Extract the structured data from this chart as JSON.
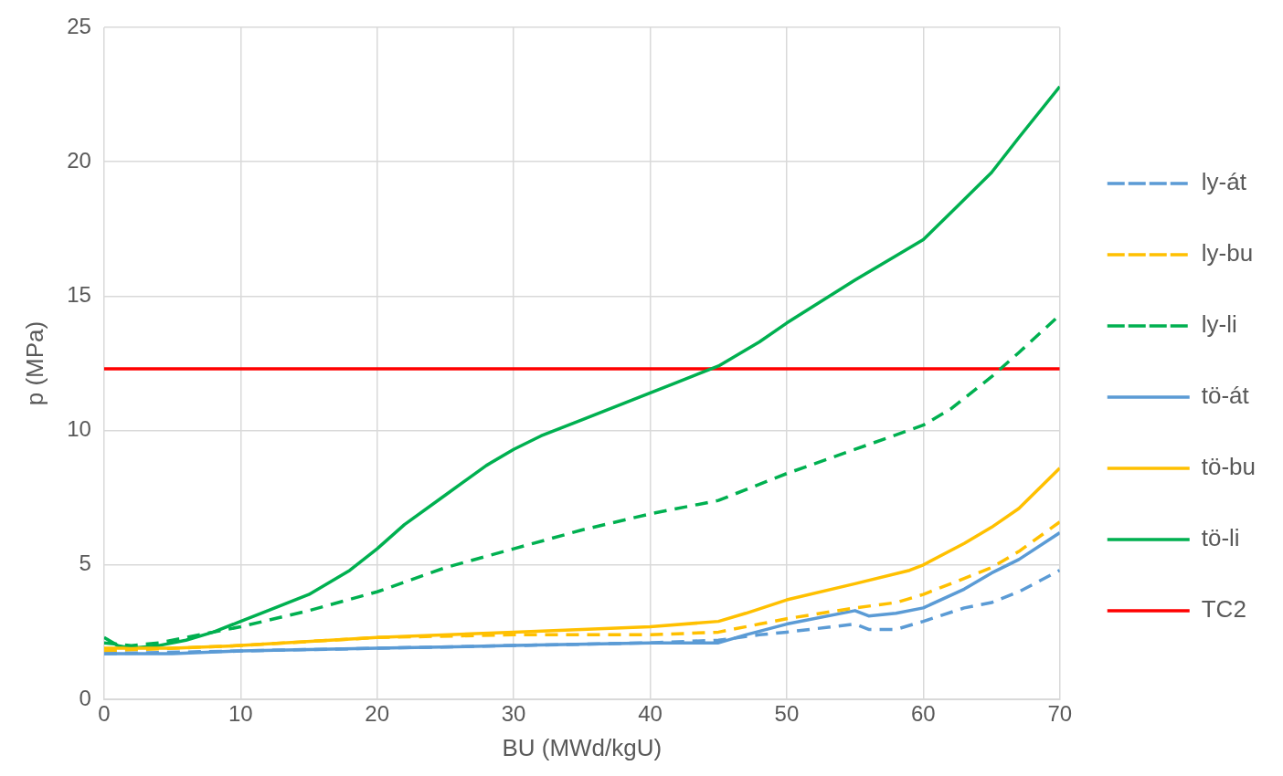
{
  "chart_data": {
    "type": "line",
    "xlabel": "BU (MWd/kgU)",
    "ylabel": "p (MPa)",
    "xlim": [
      0,
      70
    ],
    "ylim": [
      0,
      25
    ],
    "xticks": [
      0,
      10,
      20,
      30,
      40,
      50,
      60,
      70
    ],
    "yticks": [
      0,
      5,
      10,
      15,
      20,
      25
    ],
    "grid": true,
    "legend": "right",
    "marker": "none",
    "series": [
      {
        "name": "ly-át",
        "color": "#5b9bd5",
        "line_style": "dashed",
        "x": [
          0,
          10,
          20,
          30,
          40,
          45,
          48,
          50,
          55,
          56,
          58,
          60,
          63,
          65,
          67,
          70
        ],
        "values": [
          1.7,
          1.8,
          1.9,
          2.0,
          2.1,
          2.2,
          2.4,
          2.5,
          2.8,
          2.6,
          2.6,
          2.9,
          3.4,
          3.6,
          4.0,
          4.8
        ]
      },
      {
        "name": "ly-bu",
        "color": "#ffc000",
        "line_style": "dashed",
        "x": [
          0,
          10,
          20,
          30,
          40,
          45,
          48,
          50,
          55,
          58,
          60,
          63,
          65,
          67,
          70
        ],
        "values": [
          1.8,
          2.0,
          2.3,
          2.4,
          2.4,
          2.5,
          2.8,
          3.0,
          3.4,
          3.6,
          3.9,
          4.5,
          4.9,
          5.5,
          6.6
        ]
      },
      {
        "name": "ly-li",
        "color": "#00b050",
        "line_style": "dashed",
        "x": [
          0,
          2,
          4,
          6,
          10,
          15,
          20,
          25,
          30,
          35,
          40,
          45,
          50,
          55,
          60,
          62,
          65,
          67,
          70
        ],
        "values": [
          2.1,
          2.0,
          2.1,
          2.3,
          2.7,
          3.3,
          4.0,
          4.9,
          5.6,
          6.3,
          6.9,
          7.4,
          8.4,
          9.3,
          10.2,
          10.8,
          12.0,
          12.9,
          14.3
        ]
      },
      {
        "name": "tö-át",
        "color": "#5b9bd5",
        "line_style": "solid",
        "x": [
          0,
          5,
          10,
          20,
          30,
          40,
          45,
          47,
          50,
          55,
          56,
          58,
          60,
          63,
          65,
          67,
          70
        ],
        "values": [
          1.7,
          1.7,
          1.8,
          1.9,
          2.0,
          2.1,
          2.1,
          2.4,
          2.8,
          3.3,
          3.1,
          3.2,
          3.4,
          4.1,
          4.7,
          5.2,
          6.2
        ]
      },
      {
        "name": "tö-bu",
        "color": "#ffc000",
        "line_style": "solid",
        "x": [
          0,
          5,
          10,
          20,
          30,
          40,
          45,
          47,
          50,
          55,
          59,
          60,
          63,
          65,
          67,
          70
        ],
        "values": [
          1.9,
          1.9,
          2.0,
          2.3,
          2.5,
          2.7,
          2.9,
          3.2,
          3.7,
          4.3,
          4.8,
          5.0,
          5.8,
          6.4,
          7.1,
          8.6
        ]
      },
      {
        "name": "tö-li",
        "color": "#00b050",
        "line_style": "solid",
        "x": [
          0,
          1,
          2,
          4,
          6,
          8,
          10,
          12,
          15,
          18,
          20,
          22,
          25,
          28,
          30,
          32,
          35,
          40,
          42,
          45,
          48,
          50,
          55,
          58,
          60,
          62,
          65,
          67,
          70
        ],
        "values": [
          2.3,
          2.0,
          1.9,
          2.0,
          2.2,
          2.5,
          2.9,
          3.3,
          3.9,
          4.8,
          5.6,
          6.5,
          7.6,
          8.7,
          9.3,
          9.8,
          10.4,
          11.4,
          11.8,
          12.4,
          13.3,
          14.0,
          15.6,
          16.5,
          17.1,
          18.1,
          19.6,
          20.9,
          22.8
        ]
      },
      {
        "name": "TC2",
        "color": "#ff0000",
        "line_style": "solid",
        "x": [
          0,
          70
        ],
        "values": [
          12.3,
          12.3
        ]
      }
    ]
  }
}
